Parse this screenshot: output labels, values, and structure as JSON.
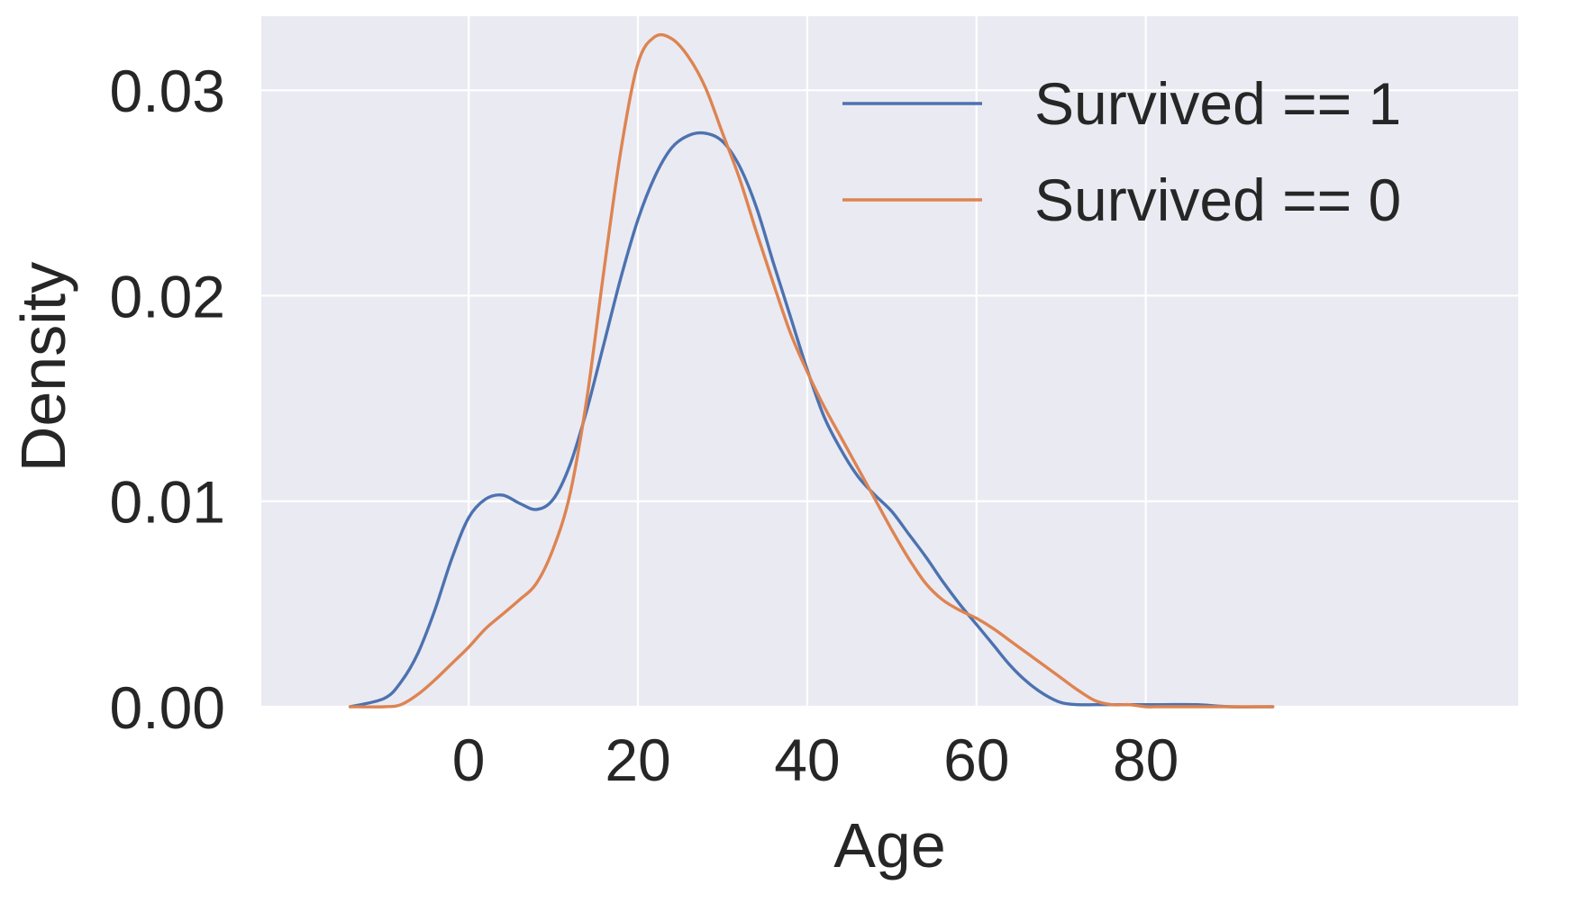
{
  "chart_data": {
    "type": "line",
    "title": "",
    "xlabel": "Age",
    "ylabel": "Density",
    "xlim": [
      -24.5,
      124
    ],
    "ylim": [
      0,
      0.0336
    ],
    "xticks": [
      0,
      20,
      40,
      60,
      80
    ],
    "yticks": [
      0.0,
      0.01,
      0.02,
      0.03
    ],
    "xtick_labels": [
      "0",
      "20",
      "40",
      "60",
      "80"
    ],
    "ytick_labels": [
      "0.00",
      "0.01",
      "0.02",
      "0.03"
    ],
    "grid": true,
    "background": "#eaeaf2",
    "grid_color": "#ffffff",
    "legend_position": "top-right",
    "series": [
      {
        "name": "Survived == 1",
        "color": "#4c72b0",
        "x": [
          -14,
          -10,
          -8,
          -6,
          -4,
          -2,
          0,
          2,
          4,
          6,
          8,
          10,
          12,
          14,
          16,
          18,
          20,
          22,
          24,
          26,
          28,
          30,
          32,
          34,
          36,
          38,
          40,
          42,
          44,
          46,
          48,
          50,
          52,
          54,
          56,
          58,
          60,
          62,
          64,
          66,
          68,
          70,
          72,
          74,
          76,
          78,
          80,
          82,
          86,
          90,
          95
        ],
        "y": [
          0.0,
          0.0004,
          0.0012,
          0.0026,
          0.0047,
          0.0072,
          0.0092,
          0.0101,
          0.0103,
          0.0099,
          0.0096,
          0.0101,
          0.0118,
          0.0145,
          0.0177,
          0.0209,
          0.0237,
          0.0258,
          0.0272,
          0.0278,
          0.0279,
          0.0275,
          0.0263,
          0.0243,
          0.0216,
          0.019,
          0.0164,
          0.0141,
          0.0125,
          0.0112,
          0.0103,
          0.0095,
          0.0084,
          0.0073,
          0.0061,
          0.005,
          0.004,
          0.003,
          0.002,
          0.0012,
          0.0006,
          0.0002,
          0.0001,
          0.0001,
          0.0001,
          0.0001,
          0.0001,
          0.0001,
          0.0001,
          0.0,
          0.0
        ]
      },
      {
        "name": "Survived == 0",
        "color": "#dd8452",
        "x": [
          -14,
          -10,
          -8,
          -6,
          -4,
          -2,
          0,
          2,
          4,
          6,
          8,
          10,
          12,
          14,
          16,
          18,
          20,
          22,
          24,
          26,
          28,
          30,
          32,
          34,
          36,
          38,
          40,
          42,
          44,
          46,
          48,
          50,
          52,
          54,
          56,
          58,
          60,
          62,
          64,
          66,
          68,
          70,
          72,
          74,
          76,
          78,
          80,
          82,
          86,
          90,
          95
        ],
        "y": [
          0.0,
          0.0,
          0.0001,
          0.0006,
          0.0013,
          0.0021,
          0.0029,
          0.0038,
          0.0045,
          0.0052,
          0.006,
          0.0077,
          0.0104,
          0.0151,
          0.0213,
          0.0271,
          0.0313,
          0.0326,
          0.0325,
          0.0316,
          0.0301,
          0.0279,
          0.0257,
          0.0231,
          0.0206,
          0.0182,
          0.0163,
          0.0146,
          0.0131,
          0.0116,
          0.0101,
          0.0086,
          0.0072,
          0.006,
          0.0052,
          0.0047,
          0.0043,
          0.0038,
          0.0032,
          0.0026,
          0.002,
          0.0014,
          0.0008,
          0.0003,
          0.0001,
          0.0001,
          0.0,
          0.0,
          0.0,
          0.0,
          0.0
        ]
      }
    ]
  }
}
